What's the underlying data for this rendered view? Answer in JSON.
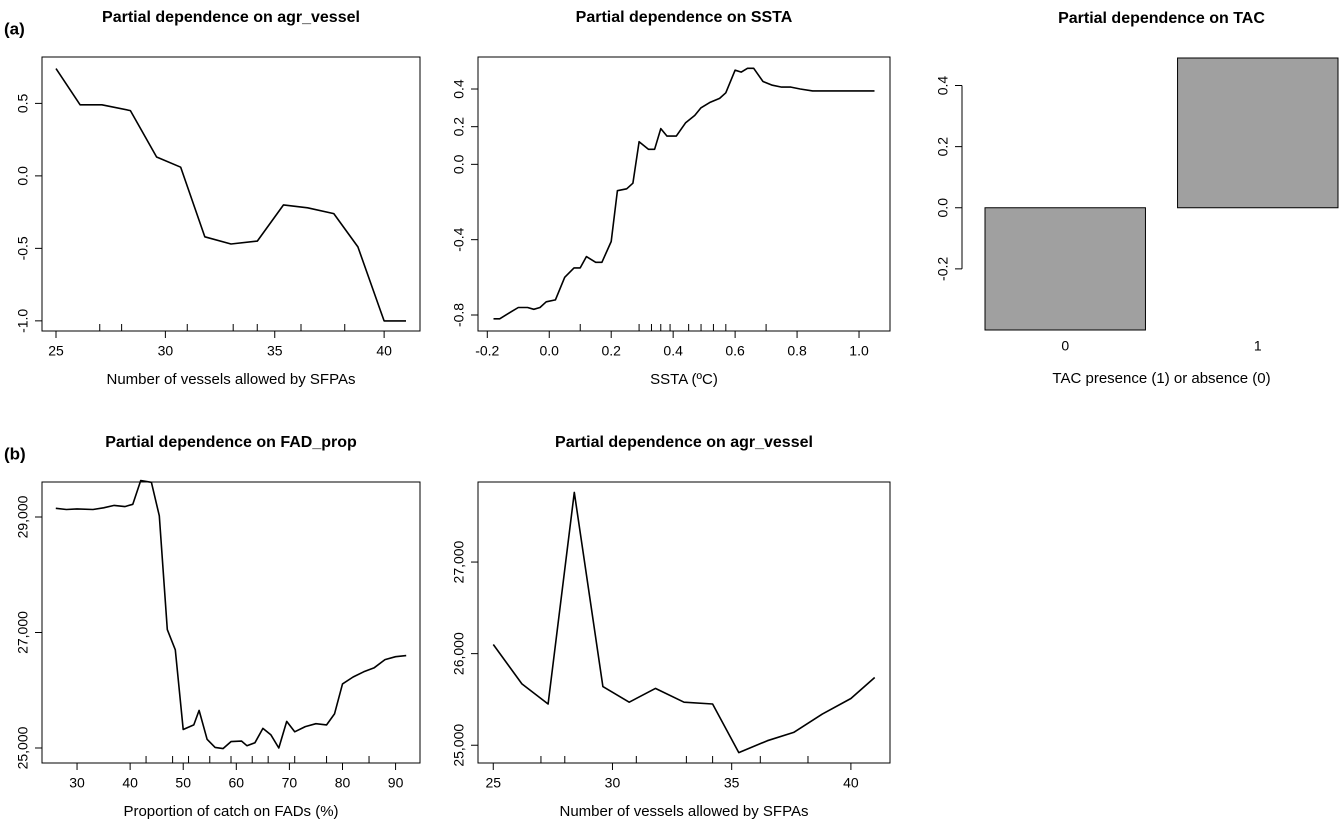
{
  "chart_data": [
    {
      "type": "line",
      "panel": "(a)",
      "title": "Partial dependence on agr_vessel",
      "x_label": "Number of vessels allowed by SFPAs",
      "x": [
        25,
        26.1,
        27.1,
        28.4,
        29.6,
        30.7,
        31.8,
        33.0,
        34.2,
        35.4,
        36.5,
        37.7,
        38.8,
        40.0,
        41.0
      ],
      "values": [
        0.74,
        0.49,
        0.49,
        0.45,
        0.13,
        0.06,
        -0.42,
        -0.47,
        -0.45,
        -0.2,
        -0.22,
        -0.26,
        -0.49,
        -1.0,
        -1.0
      ],
      "rug": [
        27.0,
        28.0,
        31.0,
        33.1,
        34.2,
        36.2,
        38.2
      ],
      "xlim": [
        24.36,
        41.64
      ],
      "xticks": [
        25,
        30,
        35,
        40
      ],
      "ylim": [
        -1.07,
        0.82
      ],
      "yticks": [
        {
          "value": -1,
          "label": "-1.0"
        },
        -0.5,
        {
          "value": 0,
          "label": "0.0"
        },
        0.5
      ],
      "color": "#000000"
    },
    {
      "type": "line",
      "title": "Partial dependence on SSTA",
      "x_label": "SSTA (ºC)",
      "x": [
        -0.18,
        -0.16,
        -0.12,
        -0.1,
        -0.07,
        -0.05,
        -0.03,
        -0.01,
        0.02,
        0.05,
        0.08,
        0.1,
        0.12,
        0.15,
        0.17,
        0.2,
        0.22,
        0.25,
        0.27,
        0.29,
        0.32,
        0.34,
        0.36,
        0.38,
        0.41,
        0.44,
        0.47,
        0.49,
        0.52,
        0.55,
        0.57,
        0.6,
        0.62,
        0.64,
        0.66,
        0.69,
        0.72,
        0.75,
        0.78,
        0.81,
        0.85,
        0.9,
        0.95,
        1.0,
        1.05
      ],
      "values": [
        -0.82,
        -0.82,
        -0.78,
        -0.76,
        -0.76,
        -0.77,
        -0.76,
        -0.73,
        -0.72,
        -0.6,
        -0.55,
        -0.55,
        -0.49,
        -0.52,
        -0.52,
        -0.41,
        -0.14,
        -0.13,
        -0.1,
        0.12,
        0.08,
        0.08,
        0.19,
        0.15,
        0.15,
        0.22,
        0.26,
        0.3,
        0.33,
        0.35,
        0.38,
        0.5,
        0.49,
        0.51,
        0.51,
        0.44,
        0.42,
        0.41,
        0.41,
        0.4,
        0.39,
        0.39,
        0.39,
        0.39,
        0.39
      ],
      "rug": [
        0.1,
        0.29,
        0.33,
        0.36,
        0.39,
        0.45,
        0.49,
        0.53,
        0.57,
        0.7
      ],
      "xlim": [
        -0.23,
        1.1
      ],
      "xticks": [
        -0.2,
        {
          "value": 0,
          "label": "0.0"
        },
        0.2,
        0.4,
        0.6,
        0.8,
        {
          "value": 1,
          "label": "1.0"
        }
      ],
      "ylim": [
        -0.885,
        0.57
      ],
      "yticks": [
        -0.8,
        -0.4,
        {
          "value": 0,
          "label": "0.0"
        },
        0.2,
        0.4
      ],
      "color": "#000000"
    },
    {
      "type": "bar",
      "title": "Partial dependence on TAC",
      "x_label": "TAC presence (1) or absence (0)",
      "categories": [
        "0",
        "1"
      ],
      "values": [
        -0.4,
        0.49
      ],
      "color": "#a0a0a0",
      "ylim": [
        -0.4,
        0.49
      ],
      "yticks": [
        -0.2,
        {
          "value": 0,
          "label": "0.0"
        },
        0.2,
        0.4
      ]
    },
    {
      "type": "line",
      "panel": "(b)",
      "title": "Partial dependence on FAD_prop",
      "x_label": "Proportion of catch on FADs (%)",
      "x": [
        26,
        28,
        30,
        33,
        35,
        37,
        39,
        40.5,
        42,
        44,
        45.5,
        47,
        48.5,
        50,
        52,
        53,
        54.5,
        56,
        57.5,
        59,
        61,
        62,
        63.5,
        65,
        66.5,
        68,
        69.5,
        71,
        73,
        75,
        77,
        78.5,
        80,
        82,
        84,
        86,
        88,
        90,
        92
      ],
      "values": [
        29150,
        29130,
        29140,
        29130,
        29160,
        29200,
        29180,
        29220,
        29630,
        29600,
        29020,
        27050,
        26700,
        25320,
        25400,
        25650,
        25150,
        25010,
        24990,
        25110,
        25120,
        25040,
        25090,
        25340,
        25230,
        25000,
        25460,
        25280,
        25370,
        25420,
        25400,
        25590,
        26110,
        26230,
        26320,
        26390,
        26530,
        26580,
        26600
      ],
      "rug": [
        43,
        48,
        51,
        55,
        59,
        63,
        66,
        71,
        77,
        85
      ],
      "xlim": [
        23.4,
        94.6
      ],
      "xticks": [
        30,
        40,
        50,
        60,
        70,
        80,
        90
      ],
      "ylim": [
        24740,
        29606
      ],
      "yticks": [
        {
          "value": 25000,
          "label": "25,000"
        },
        {
          "value": 27000,
          "label": "27,000"
        },
        {
          "value": 29000,
          "label": "29,000"
        }
      ],
      "color": "#000000"
    },
    {
      "type": "line",
      "title": "Partial dependence on agr_vessel",
      "x_label": "Number of vessels allowed by SFPAs",
      "x": [
        25,
        26.2,
        27.3,
        28.4,
        29.6,
        30.7,
        31.8,
        33.0,
        34.2,
        35.3,
        36.5,
        37.6,
        38.8,
        40.0,
        41.0
      ],
      "values": [
        26100,
        25670,
        25450,
        27760,
        25640,
        25470,
        25620,
        25470,
        25450,
        24920,
        25050,
        25140,
        25340,
        25510,
        25740
      ],
      "rug": [
        27.0,
        28.0,
        31.0,
        33.1,
        34.2,
        36.2,
        38.2
      ],
      "xlim": [
        24.36,
        41.64
      ],
      "xticks": [
        25,
        30,
        35,
        40
      ],
      "ylim": [
        24806,
        27874
      ],
      "yticks": [
        {
          "value": 25000,
          "label": "25,000"
        },
        {
          "value": 26000,
          "label": "26,000"
        },
        {
          "value": 27000,
          "label": "27,000"
        }
      ],
      "color": "#000000"
    }
  ]
}
